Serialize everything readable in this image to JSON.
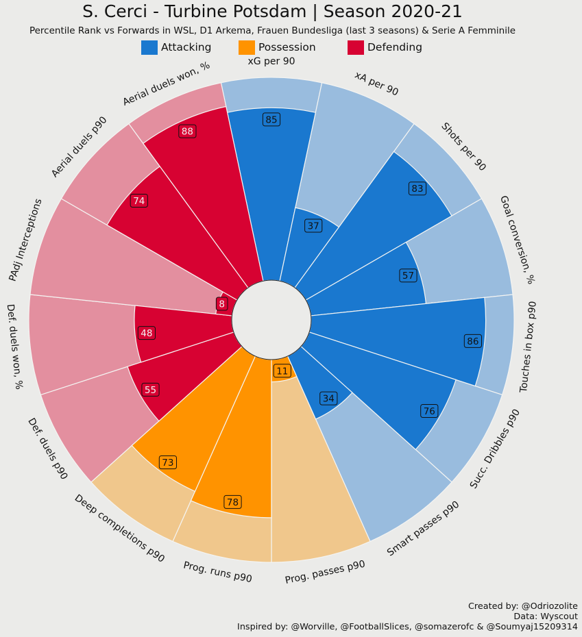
{
  "chart_data": {
    "type": "radial-bar",
    "title": "S. Cerci - Turbine Potsdam | Season 2020-21",
    "subtitle": "Percentile Rank vs Forwards in WSL, D1 Arkema, Frauen Bundesliga (last 3 seasons) & Serie A Femminile",
    "rlim": [
      0,
      100
    ],
    "categories": [
      "xG per 90",
      "xA per 90",
      "Shots per 90",
      "Goal conversion, %",
      "Touches in box p90",
      "Succ. Dribbles p90",
      "Smart passes p90",
      "Prog. passes p90",
      "Prog. runs p90",
      "Deep completions p90",
      "Def. duels p90",
      "Def. duels won, %",
      "PAdj Interceptions",
      "Aerial duels p90",
      "Aerial duels won, %"
    ],
    "values": [
      85,
      37,
      83,
      57,
      86,
      76,
      34,
      11,
      78,
      73,
      55,
      48,
      8,
      74,
      88
    ],
    "groups": [
      "Attacking",
      "Attacking",
      "Attacking",
      "Attacking",
      "Attacking",
      "Attacking",
      "Attacking",
      "Possession",
      "Possession",
      "Possession",
      "Defending",
      "Defending",
      "Defending",
      "Defending",
      "Defending"
    ],
    "legend": [
      {
        "name": "Attacking",
        "color": "#1a78cf",
        "light": "#99bcde"
      },
      {
        "name": "Possession",
        "color": "#ff9300",
        "light": "#f0c78c"
      },
      {
        "name": "Defending",
        "color": "#d70232",
        "light": "#e38f9f"
      }
    ]
  },
  "credits": {
    "line1": "Created by: @Odriozolite",
    "line2": "Data: Wyscout",
    "line3": "Inspired by: @Worville, @FootballSlices, @somazerofc & @Soumyaj15209314"
  }
}
